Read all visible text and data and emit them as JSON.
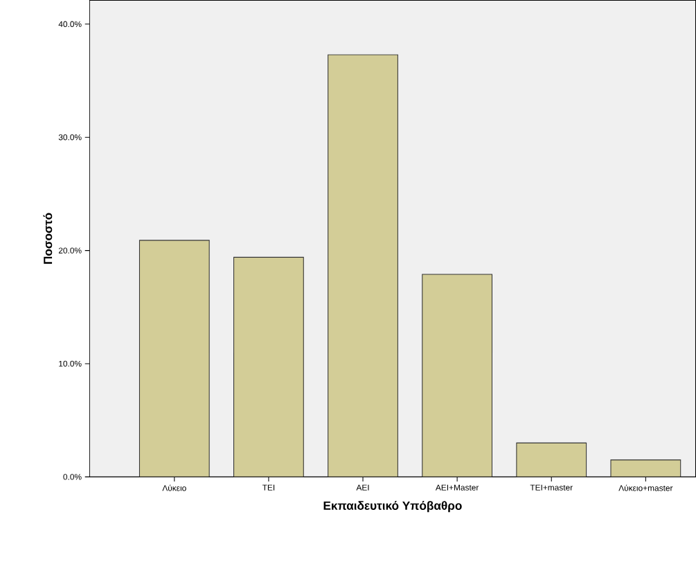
{
  "chart_data": {
    "type": "bar",
    "xlabel": "Εκπαιδευτικό Υπόβαθρο",
    "ylabel": "Ποσοστό",
    "categories": [
      "Λύκειο",
      "ΤΕΙ",
      "ΑΕΙ",
      "ΑΕΙ+Master",
      "ΤΕΙ+master",
      "Λύκειο+master"
    ],
    "values": [
      20.9,
      19.4,
      37.3,
      17.9,
      3.0,
      1.5
    ],
    "color": "#d3cd97",
    "ylim": [
      0,
      42.1
    ],
    "yticks": [
      {
        "value": 0,
        "label": "0.0%"
      },
      {
        "value": 10,
        "label": "10.0%"
      },
      {
        "value": 20,
        "label": "20.0%"
      },
      {
        "value": 30,
        "label": "30.0%"
      },
      {
        "value": 40,
        "label": "40.0%"
      }
    ]
  }
}
